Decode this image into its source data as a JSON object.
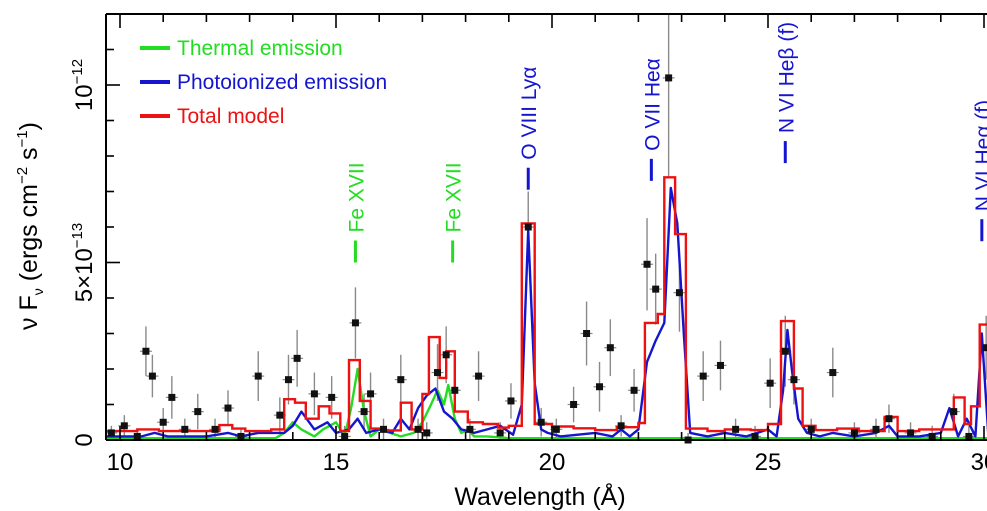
{
  "chart_data": {
    "type": "line",
    "title": "",
    "xlabel": "Wavelength (Å)",
    "ylabel": "ν F",
    "ylabel_sub": "ν",
    "ylabel_units": " (ergs cm",
    "ylabel_units_sup1": "−2",
    "ylabel_units_mid": " s",
    "ylabel_units_sup2": "−1",
    "ylabel_units_end": ")",
    "xlim": [
      9.5,
      30.3
    ],
    "ylim": [
      0,
      1.2e-12
    ],
    "x_ticks": [
      {
        "value": 10,
        "label": "10"
      },
      {
        "value": 15,
        "label": "15"
      },
      {
        "value": 20,
        "label": "20"
      },
      {
        "value": 25,
        "label": "25"
      },
      {
        "value": 30,
        "label": "30"
      }
    ],
    "y_ticks": [
      {
        "value": 0,
        "label": "0"
      },
      {
        "value": 5e-13,
        "label": "5×10",
        "sup": "−13"
      },
      {
        "value": 1e-12,
        "label": "10",
        "sup": "−12"
      }
    ],
    "legend_position": "top-left",
    "legend": [
      {
        "name": "Thermal emission",
        "color": "#22dd22"
      },
      {
        "name": "Photoionized emission",
        "color": "#1515d0"
      },
      {
        "name": "Total model",
        "color": "#ee1111"
      }
    ],
    "series": [
      {
        "name": "Thermal emission",
        "color": "#22dd22",
        "x": [
          9.5,
          13.6,
          13.8,
          14.0,
          14.2,
          14.5,
          14.7,
          15.0,
          15.2,
          15.35,
          15.5,
          15.65,
          15.8,
          16.0,
          16.5,
          16.8,
          17.0,
          17.2,
          17.35,
          17.5,
          17.6,
          17.75,
          17.9,
          18.05,
          18.2,
          18.5,
          19.0,
          30.3
        ],
        "y": [
          5e-15,
          5e-15,
          2e-14,
          5e-14,
          3e-14,
          1e-14,
          3e-14,
          5e-14,
          1e-14,
          9e-14,
          2e-13,
          8e-14,
          1e-14,
          3e-14,
          1e-14,
          2e-14,
          5e-14,
          1e-13,
          1.4e-13,
          1e-13,
          1.55e-13,
          6e-14,
          2e-14,
          3e-14,
          1e-14,
          1e-14,
          5e-15,
          5e-15
        ]
      },
      {
        "name": "Photoionized emission",
        "color": "#1515d0",
        "x": [
          9.5,
          10.5,
          10.8,
          11.1,
          12.0,
          12.5,
          12.8,
          13.2,
          13.8,
          14.0,
          14.2,
          14.5,
          14.8,
          15.0,
          15.3,
          15.5,
          15.7,
          16.0,
          16.3,
          16.5,
          16.7,
          16.9,
          17.1,
          17.3,
          17.5,
          17.7,
          17.9,
          18.2,
          18.5,
          18.8,
          19.1,
          19.3,
          19.45,
          19.6,
          19.75,
          19.9,
          20.2,
          21.0,
          21.4,
          21.6,
          21.8,
          22.0,
          22.2,
          22.4,
          22.6,
          22.75,
          22.9,
          23.05,
          23.2,
          23.6,
          24.0,
          24.5,
          25.0,
          25.2,
          25.35,
          25.45,
          25.55,
          25.7,
          25.9,
          26.2,
          26.5,
          27.0,
          27.5,
          27.8,
          28.0,
          28.5,
          29.0,
          29.2,
          29.4,
          29.6,
          29.8,
          29.95,
          30.1,
          30.3
        ],
        "y": [
          1e-14,
          1e-14,
          2e-14,
          1e-14,
          1e-14,
          2e-14,
          1e-14,
          2e-14,
          2e-14,
          4e-14,
          8e-14,
          3e-14,
          5e-14,
          2e-14,
          3e-14,
          6e-14,
          2e-14,
          3e-14,
          2e-14,
          6e-14,
          3e-14,
          9e-14,
          1.25e-13,
          1.45e-13,
          8e-14,
          6e-14,
          3e-14,
          2e-14,
          3e-14,
          4e-14,
          1.5e-14,
          1e-13,
          5.9e-13,
          1.6e-13,
          3e-14,
          2e-14,
          1e-14,
          2e-14,
          1e-14,
          3e-14,
          1e-14,
          3e-14,
          2.2e-13,
          2.8e-13,
          3.3e-13,
          7.1e-13,
          6.1e-13,
          3e-13,
          2e-14,
          1e-14,
          2e-14,
          1e-14,
          3e-14,
          1e-14,
          1.4e-13,
          3.1e-13,
          2e-13,
          6e-14,
          2e-14,
          1e-14,
          2e-14,
          1e-14,
          2e-14,
          4e-14,
          1e-14,
          1e-14,
          2e-14,
          9e-14,
          1e-14,
          6e-14,
          1e-14,
          3e-13,
          1.5e-14,
          1e-14
        ]
      },
      {
        "name": "Total model",
        "color": "#ee1111",
        "steps": [
          [
            9.5,
            2.5e-14
          ],
          [
            10.4,
            3e-14
          ],
          [
            10.9,
            2.5e-14
          ],
          [
            11.8,
            2.5e-14
          ],
          [
            12.3,
            4.2e-14
          ],
          [
            12.6,
            3.2e-14
          ],
          [
            12.9,
            2.5e-14
          ],
          [
            13.5,
            3e-14
          ],
          [
            13.8,
            1.15e-13
          ],
          [
            14.05,
            1.05e-13
          ],
          [
            14.3,
            6e-14
          ],
          [
            14.6,
            9.5e-14
          ],
          [
            14.85,
            7.5e-14
          ],
          [
            15.1,
            2.5e-14
          ],
          [
            15.3,
            2.25e-13
          ],
          [
            15.55,
            1.1e-13
          ],
          [
            15.8,
            3.2e-14
          ],
          [
            16.15,
            2.7e-14
          ],
          [
            16.5,
            1.05e-13
          ],
          [
            16.75,
            3e-14
          ],
          [
            17.0,
            1.3e-13
          ],
          [
            17.15,
            2.9e-13
          ],
          [
            17.4,
            1.75e-13
          ],
          [
            17.55,
            2.5e-13
          ],
          [
            17.75,
            8e-14
          ],
          [
            18.05,
            5e-14
          ],
          [
            18.4,
            4.5e-14
          ],
          [
            18.75,
            3.5e-14
          ],
          [
            19.0,
            4e-14
          ],
          [
            19.3,
            6.1e-13
          ],
          [
            19.6,
            4.5e-14
          ],
          [
            20.0,
            3.8e-14
          ],
          [
            20.5,
            3.3e-14
          ],
          [
            21.0,
            2.8e-14
          ],
          [
            21.5,
            3.6e-14
          ],
          [
            22.0,
            4.8e-14
          ],
          [
            22.15,
            3.3e-13
          ],
          [
            22.45,
            3.55e-13
          ],
          [
            22.6,
            7.4e-13
          ],
          [
            22.85,
            5.8e-13
          ],
          [
            23.1,
            3.2e-14
          ],
          [
            23.6,
            2.5e-14
          ],
          [
            24.0,
            3e-14
          ],
          [
            24.6,
            2.8e-14
          ],
          [
            25.0,
            4.5e-14
          ],
          [
            25.3,
            3.35e-13
          ],
          [
            25.6,
            1.45e-13
          ],
          [
            25.8,
            4e-14
          ],
          [
            26.1,
            2.8e-14
          ],
          [
            26.6,
            3.2e-14
          ],
          [
            27.1,
            2.5e-14
          ],
          [
            27.7,
            6.5e-14
          ],
          [
            28.0,
            2.5e-14
          ],
          [
            28.5,
            3e-14
          ],
          [
            29.0,
            3e-14
          ],
          [
            29.3,
            1.2e-13
          ],
          [
            29.55,
            4.5e-14
          ],
          [
            29.7,
            9.5e-14
          ],
          [
            29.9,
            3.25e-13
          ],
          [
            30.3,
            3.25e-13
          ]
        ]
      },
      {
        "name": "Data",
        "color": "#000000",
        "points": [
          {
            "x": 9.8,
            "y": 2e-14,
            "err": 2e-14
          },
          {
            "x": 10.1,
            "y": 4e-14,
            "err": 3e-14
          },
          {
            "x": 10.4,
            "y": 1e-14,
            "err": 2e-14
          },
          {
            "x": 10.6,
            "y": 2.5e-13,
            "err": 7e-14
          },
          {
            "x": 10.75,
            "y": 1.8e-13,
            "err": 6e-14
          },
          {
            "x": 11.0,
            "y": 5e-14,
            "err": 4e-14
          },
          {
            "x": 11.2,
            "y": 1.2e-13,
            "err": 6e-14
          },
          {
            "x": 11.5,
            "y": 3e-14,
            "err": 3e-14
          },
          {
            "x": 11.8,
            "y": 8e-14,
            "err": 5e-14
          },
          {
            "x": 12.2,
            "y": 3e-14,
            "err": 3e-14
          },
          {
            "x": 12.5,
            "y": 9e-14,
            "err": 5e-14
          },
          {
            "x": 12.8,
            "y": 1e-14,
            "err": 2e-14
          },
          {
            "x": 13.2,
            "y": 1.8e-13,
            "err": 7e-14
          },
          {
            "x": 13.7,
            "y": 7e-14,
            "err": 5e-14
          },
          {
            "x": 13.9,
            "y": 1.7e-13,
            "err": 7e-14
          },
          {
            "x": 14.1,
            "y": 2.3e-13,
            "err": 8e-14
          },
          {
            "x": 14.5,
            "y": 1.3e-13,
            "err": 6e-14
          },
          {
            "x": 14.9,
            "y": 1.2e-13,
            "err": 6e-14
          },
          {
            "x": 15.2,
            "y": 1e-14,
            "err": 3e-14
          },
          {
            "x": 15.45,
            "y": 3.3e-13,
            "err": 1e-13
          },
          {
            "x": 15.65,
            "y": 8e-14,
            "err": 5e-14
          },
          {
            "x": 15.8,
            "y": 1.3e-13,
            "err": 6e-14
          },
          {
            "x": 16.1,
            "y": 3e-14,
            "err": 3e-14
          },
          {
            "x": 16.5,
            "y": 1.7e-13,
            "err": 7e-14
          },
          {
            "x": 16.9,
            "y": 3e-14,
            "err": 3e-14
          },
          {
            "x": 17.1,
            "y": 2e-14,
            "err": 3e-14
          },
          {
            "x": 17.35,
            "y": 1.9e-13,
            "err": 8e-14
          },
          {
            "x": 17.55,
            "y": 2.4e-13,
            "err": 8e-14
          },
          {
            "x": 17.75,
            "y": 1.4e-13,
            "err": 6e-14
          },
          {
            "x": 18.1,
            "y": 3e-14,
            "err": 3e-14
          },
          {
            "x": 18.3,
            "y": 1.8e-13,
            "err": 7e-14
          },
          {
            "x": 18.8,
            "y": 2e-14,
            "err": 3e-14
          },
          {
            "x": 19.05,
            "y": 1.1e-13,
            "err": 5e-14
          },
          {
            "x": 19.45,
            "y": 6e-13,
            "err": 1e-13
          },
          {
            "x": 19.75,
            "y": 5e-14,
            "err": 4e-14
          },
          {
            "x": 20.1,
            "y": 3e-14,
            "err": 3e-14
          },
          {
            "x": 20.5,
            "y": 1e-13,
            "err": 5e-14
          },
          {
            "x": 20.8,
            "y": 3e-13,
            "err": 9e-14
          },
          {
            "x": 21.1,
            "y": 1.5e-13,
            "err": 7e-14
          },
          {
            "x": 21.35,
            "y": 2.6e-13,
            "err": 8e-14
          },
          {
            "x": 21.6,
            "y": 4e-14,
            "err": 3e-14
          },
          {
            "x": 21.9,
            "y": 1.4e-13,
            "err": 6e-14
          },
          {
            "x": 22.2,
            "y": 4.95e-13,
            "err": 1.3e-13
          },
          {
            "x": 22.4,
            "y": 4.25e-13,
            "err": 1e-13
          },
          {
            "x": 22.7,
            "y": 1.02e-12,
            "err": 2.8e-13
          },
          {
            "x": 22.95,
            "y": 4.15e-13,
            "err": 1.1e-13
          },
          {
            "x": 23.15,
            "y": 0,
            "err": 2e-14
          },
          {
            "x": 23.5,
            "y": 1.8e-13,
            "err": 7e-14
          },
          {
            "x": 23.9,
            "y": 2.1e-13,
            "err": 7e-14
          },
          {
            "x": 24.25,
            "y": 3e-14,
            "err": 3e-14
          },
          {
            "x": 24.7,
            "y": 1e-14,
            "err": 3e-14
          },
          {
            "x": 25.05,
            "y": 1.6e-13,
            "err": 7e-14
          },
          {
            "x": 25.4,
            "y": 2.5e-13,
            "err": 1e-13
          },
          {
            "x": 25.6,
            "y": 1.7e-13,
            "err": 7e-14
          },
          {
            "x": 26.0,
            "y": 3e-14,
            "err": 3e-14
          },
          {
            "x": 26.5,
            "y": 1.9e-13,
            "err": 7e-14
          },
          {
            "x": 27.0,
            "y": 2e-14,
            "err": 3e-14
          },
          {
            "x": 27.5,
            "y": 3e-14,
            "err": 3e-14
          },
          {
            "x": 27.8,
            "y": 6e-14,
            "err": 4e-14
          },
          {
            "x": 28.3,
            "y": 2e-14,
            "err": 3e-14
          },
          {
            "x": 28.8,
            "y": 1e-14,
            "err": 3e-14
          },
          {
            "x": 29.3,
            "y": 8e-14,
            "err": 5e-14
          },
          {
            "x": 29.65,
            "y": 1e-14,
            "err": 3e-14
          },
          {
            "x": 30.05,
            "y": 2.6e-13,
            "err": 9e-14
          }
        ]
      }
    ],
    "line_labels": [
      {
        "text": "Fe XVII",
        "x": 15.45,
        "color": "#22dd22",
        "y_marker": 5e-13
      },
      {
        "text": "Fe XVII",
        "x": 17.7,
        "color": "#22dd22",
        "y_marker": 5e-13
      },
      {
        "text": "O VIII Lyα",
        "x": 19.45,
        "color": "#1515d0",
        "y_marker": 7.05e-13
      },
      {
        "text": "O VII Heα",
        "x": 22.3,
        "color": "#1515d0",
        "y_marker": 7.3e-13
      },
      {
        "text": "N VI Heβ (f)",
        "x": 25.4,
        "color": "#1515d0",
        "y_marker": 7.8e-13
      },
      {
        "text": "N VI Heα (f)",
        "x": 29.95,
        "color": "#1515d0",
        "y_marker": 5.6e-13
      }
    ]
  }
}
